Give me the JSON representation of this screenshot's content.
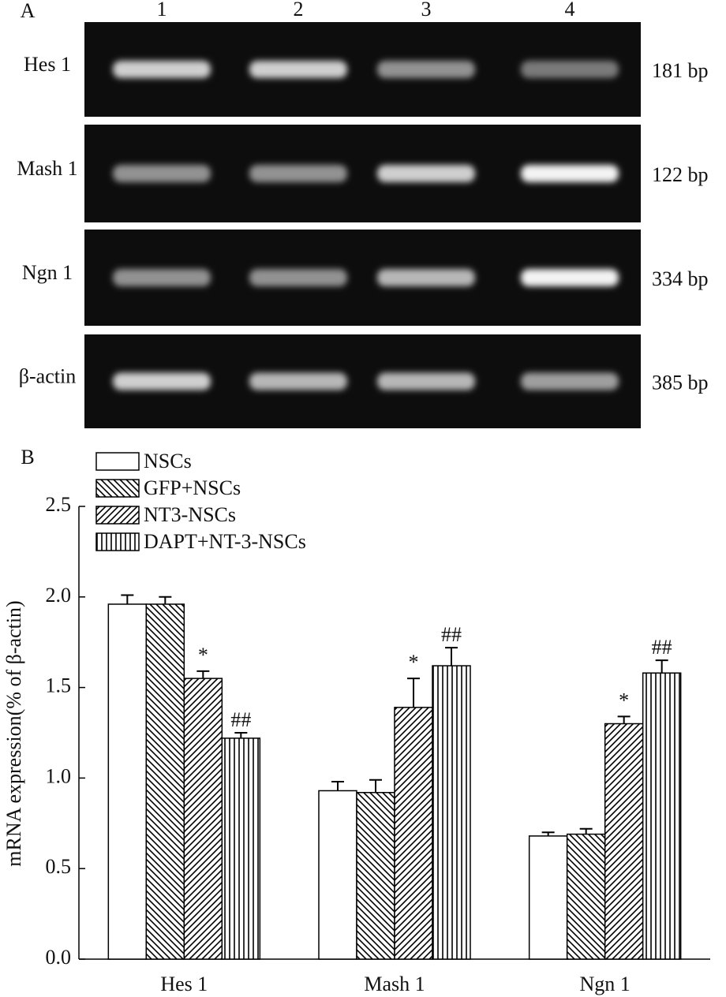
{
  "panel_a": {
    "label": "A",
    "lanes": [
      "1",
      "2",
      "3",
      "4"
    ],
    "rows": [
      {
        "gene": "Hes 1",
        "size": "181 bp"
      },
      {
        "gene": "Mash 1",
        "size": "122 bp"
      },
      {
        "gene": "Ngn 1",
        "size": "334 bp"
      },
      {
        "gene": "β-actin",
        "size": "385 bp"
      }
    ]
  },
  "chart_data": {
    "type": "bar",
    "label": "B",
    "y_label": "mRNA expression(% of β-actin)",
    "categories": [
      "Hes 1",
      "Mash 1",
      "Ngn 1"
    ],
    "series": [
      {
        "name": "NSCs",
        "color": "#ffffff",
        "pattern": "none",
        "values": [
          1.96,
          0.93,
          0.68
        ],
        "errors": [
          0.05,
          0.05,
          0.02
        ]
      },
      {
        "name": "GFP+NSCs",
        "color": "#ffffff",
        "pattern": "backslash",
        "values": [
          1.96,
          0.92,
          0.69
        ],
        "errors": [
          0.04,
          0.07,
          0.03
        ]
      },
      {
        "name": "NT3-NSCs",
        "color": "#ffffff",
        "pattern": "slash",
        "values": [
          1.55,
          1.39,
          1.3
        ],
        "errors": [
          0.04,
          0.16,
          0.04
        ],
        "marks": [
          "*",
          "*",
          "*"
        ]
      },
      {
        "name": "DAPT+NT-3-NSCs",
        "color": "#ffffff",
        "pattern": "vertical",
        "values": [
          1.22,
          1.62,
          1.58
        ],
        "errors": [
          0.03,
          0.1,
          0.07
        ],
        "marks": [
          "##",
          "##",
          "##"
        ]
      }
    ],
    "ylim": [
      0,
      2.5
    ],
    "yticks": [
      {
        "value": 0,
        "label": "0.0"
      },
      0.5,
      {
        "value": 1,
        "label": "1.0"
      },
      1.5,
      {
        "value": 2,
        "label": "2.0"
      },
      2.5
    ],
    "legend": "top-left"
  }
}
